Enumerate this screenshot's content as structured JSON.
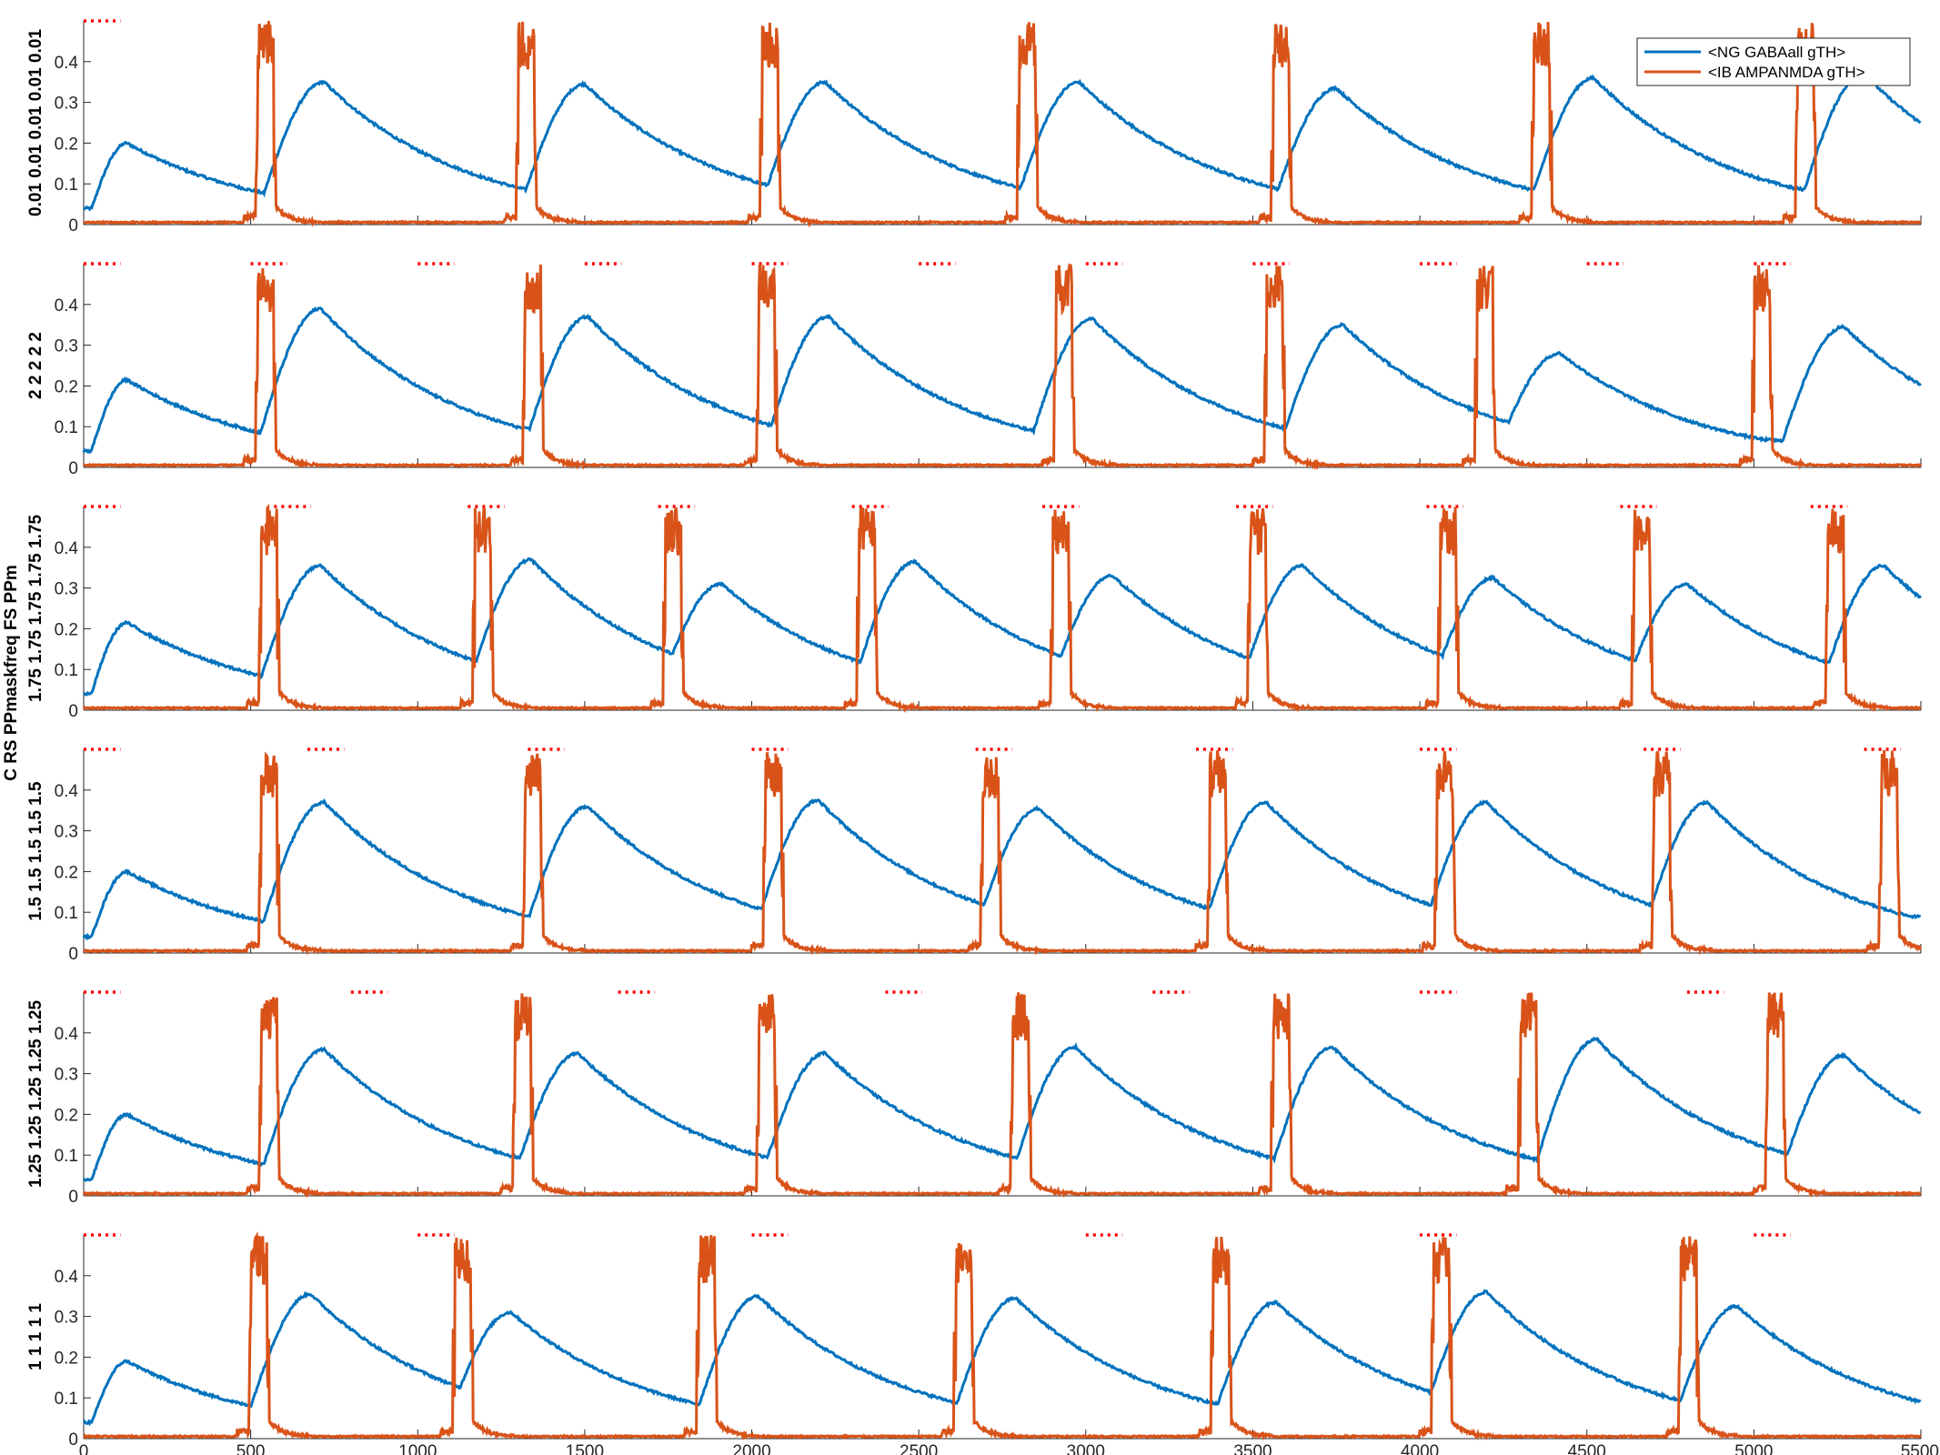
{
  "chart_data": {
    "type": "line",
    "xlim": [
      0,
      5500
    ],
    "ylim": [
      0,
      0.5
    ],
    "yticks": [
      0,
      0.1,
      0.2,
      0.3,
      0.4
    ],
    "ytick_labels": [
      "0",
      "0.1",
      "0.2",
      "0.3",
      "0.4"
    ],
    "xticks": [
      0,
      500,
      1000,
      1500,
      2000,
      2500,
      3000,
      3500,
      4000,
      4500,
      5000,
      5500
    ],
    "xtick_labels": [
      "0",
      "500",
      "1000",
      "1500",
      "2000",
      "2500",
      "3000",
      "3500",
      "4000",
      "4500",
      "5000",
      "5500"
    ],
    "grid": false,
    "legend_position": "top-right",
    "shared_ylabel": "C RS PPmaskfreq FS PPm",
    "colors": {
      "series1": "#0072BD",
      "series2": "#D95319",
      "markers": "#FF0000"
    },
    "panels": [
      {
        "ylabel": "0.01 0.01 0.01 0.01 0.01",
        "legend": [
          "<NG GABAall gTH>",
          "<IB AMPANMDA gTH>"
        ],
        "red_marker_starts": [
          0
        ],
        "spikes_x": [
          540,
          1320,
          2050,
          2820,
          3580,
          4360,
          5150
        ],
        "ng_peaks": [
          [
            130,
            0.2
          ],
          [
            720,
            0.35
          ],
          [
            1500,
            0.345
          ],
          [
            2220,
            0.35
          ],
          [
            2980,
            0.35
          ],
          [
            3750,
            0.335
          ],
          [
            4520,
            0.36
          ],
          [
            5330,
            0.37
          ]
        ]
      },
      {
        "ylabel": "2 2 2 2 2",
        "red_marker_starts": [
          0,
          500,
          1000,
          1500,
          2000,
          2500,
          3000,
          3500,
          4000,
          4500,
          5000,
          5500
        ],
        "spikes_x": [
          540,
          1340,
          2040,
          2930,
          3560,
          4190,
          5020
        ],
        "ng_peaks": [
          [
            130,
            0.215
          ],
          [
            710,
            0.39
          ],
          [
            1510,
            0.37
          ],
          [
            2230,
            0.37
          ],
          [
            3020,
            0.365
          ],
          [
            3770,
            0.35
          ],
          [
            4420,
            0.28
          ],
          [
            4690,
            0.13
          ],
          [
            5270,
            0.345
          ]
        ]
      },
      {
        "ylabel": "1.75 1.75 1.75 1.75 1.75",
        "red_marker_starts": [
          0,
          570,
          1150,
          1720,
          2300,
          2870,
          3450,
          4020,
          4600,
          5170
        ],
        "spikes_x": [
          550,
          1190,
          1760,
          2340,
          2920,
          3510,
          4080,
          4660,
          5240
        ],
        "ng_peaks": [
          [
            130,
            0.215
          ],
          [
            710,
            0.355
          ],
          [
            1340,
            0.37
          ],
          [
            1910,
            0.31
          ],
          [
            2490,
            0.365
          ],
          [
            3080,
            0.33
          ],
          [
            3650,
            0.355
          ],
          [
            4220,
            0.325
          ],
          [
            4800,
            0.31
          ],
          [
            5390,
            0.355
          ]
        ]
      },
      {
        "ylabel": "1.5 1.5 1.5 1.5 1.5",
        "red_marker_starts": [
          0,
          670,
          1330,
          2000,
          2670,
          3330,
          4000,
          4670,
          5330
        ],
        "spikes_x": [
          550,
          1340,
          2060,
          2710,
          3390,
          4070,
          4720,
          5400
        ],
        "ng_peaks": [
          [
            130,
            0.2
          ],
          [
            720,
            0.37
          ],
          [
            1510,
            0.36
          ],
          [
            2200,
            0.375
          ],
          [
            2860,
            0.355
          ],
          [
            3540,
            0.37
          ],
          [
            4200,
            0.37
          ],
          [
            4860,
            0.37
          ]
        ]
      },
      {
        "ylabel": "1.25 1.25 1.25 1.25 1.25",
        "red_marker_starts": [
          0,
          800,
          1600,
          2400,
          3200,
          4000,
          4800
        ],
        "spikes_x": [
          550,
          1310,
          2040,
          2800,
          3580,
          4320,
          5060
        ],
        "ng_peaks": [
          [
            130,
            0.2
          ],
          [
            720,
            0.36
          ],
          [
            1480,
            0.35
          ],
          [
            2220,
            0.35
          ],
          [
            2970,
            0.365
          ],
          [
            3740,
            0.365
          ],
          [
            4530,
            0.385
          ],
          [
            5270,
            0.345
          ]
        ]
      },
      {
        "ylabel": "1 1 1 1 1",
        "red_marker_starts": [
          0,
          1000,
          2000,
          3000,
          4000,
          5000
        ],
        "spikes_x": [
          520,
          1130,
          1860,
          2630,
          3400,
          4060,
          4800
        ],
        "ng_peaks": [
          [
            130,
            0.19
          ],
          [
            680,
            0.355
          ],
          [
            1280,
            0.31
          ],
          [
            2020,
            0.35
          ],
          [
            2790,
            0.345
          ],
          [
            3570,
            0.335
          ],
          [
            4200,
            0.36
          ],
          [
            4950,
            0.325
          ]
        ]
      }
    ]
  }
}
